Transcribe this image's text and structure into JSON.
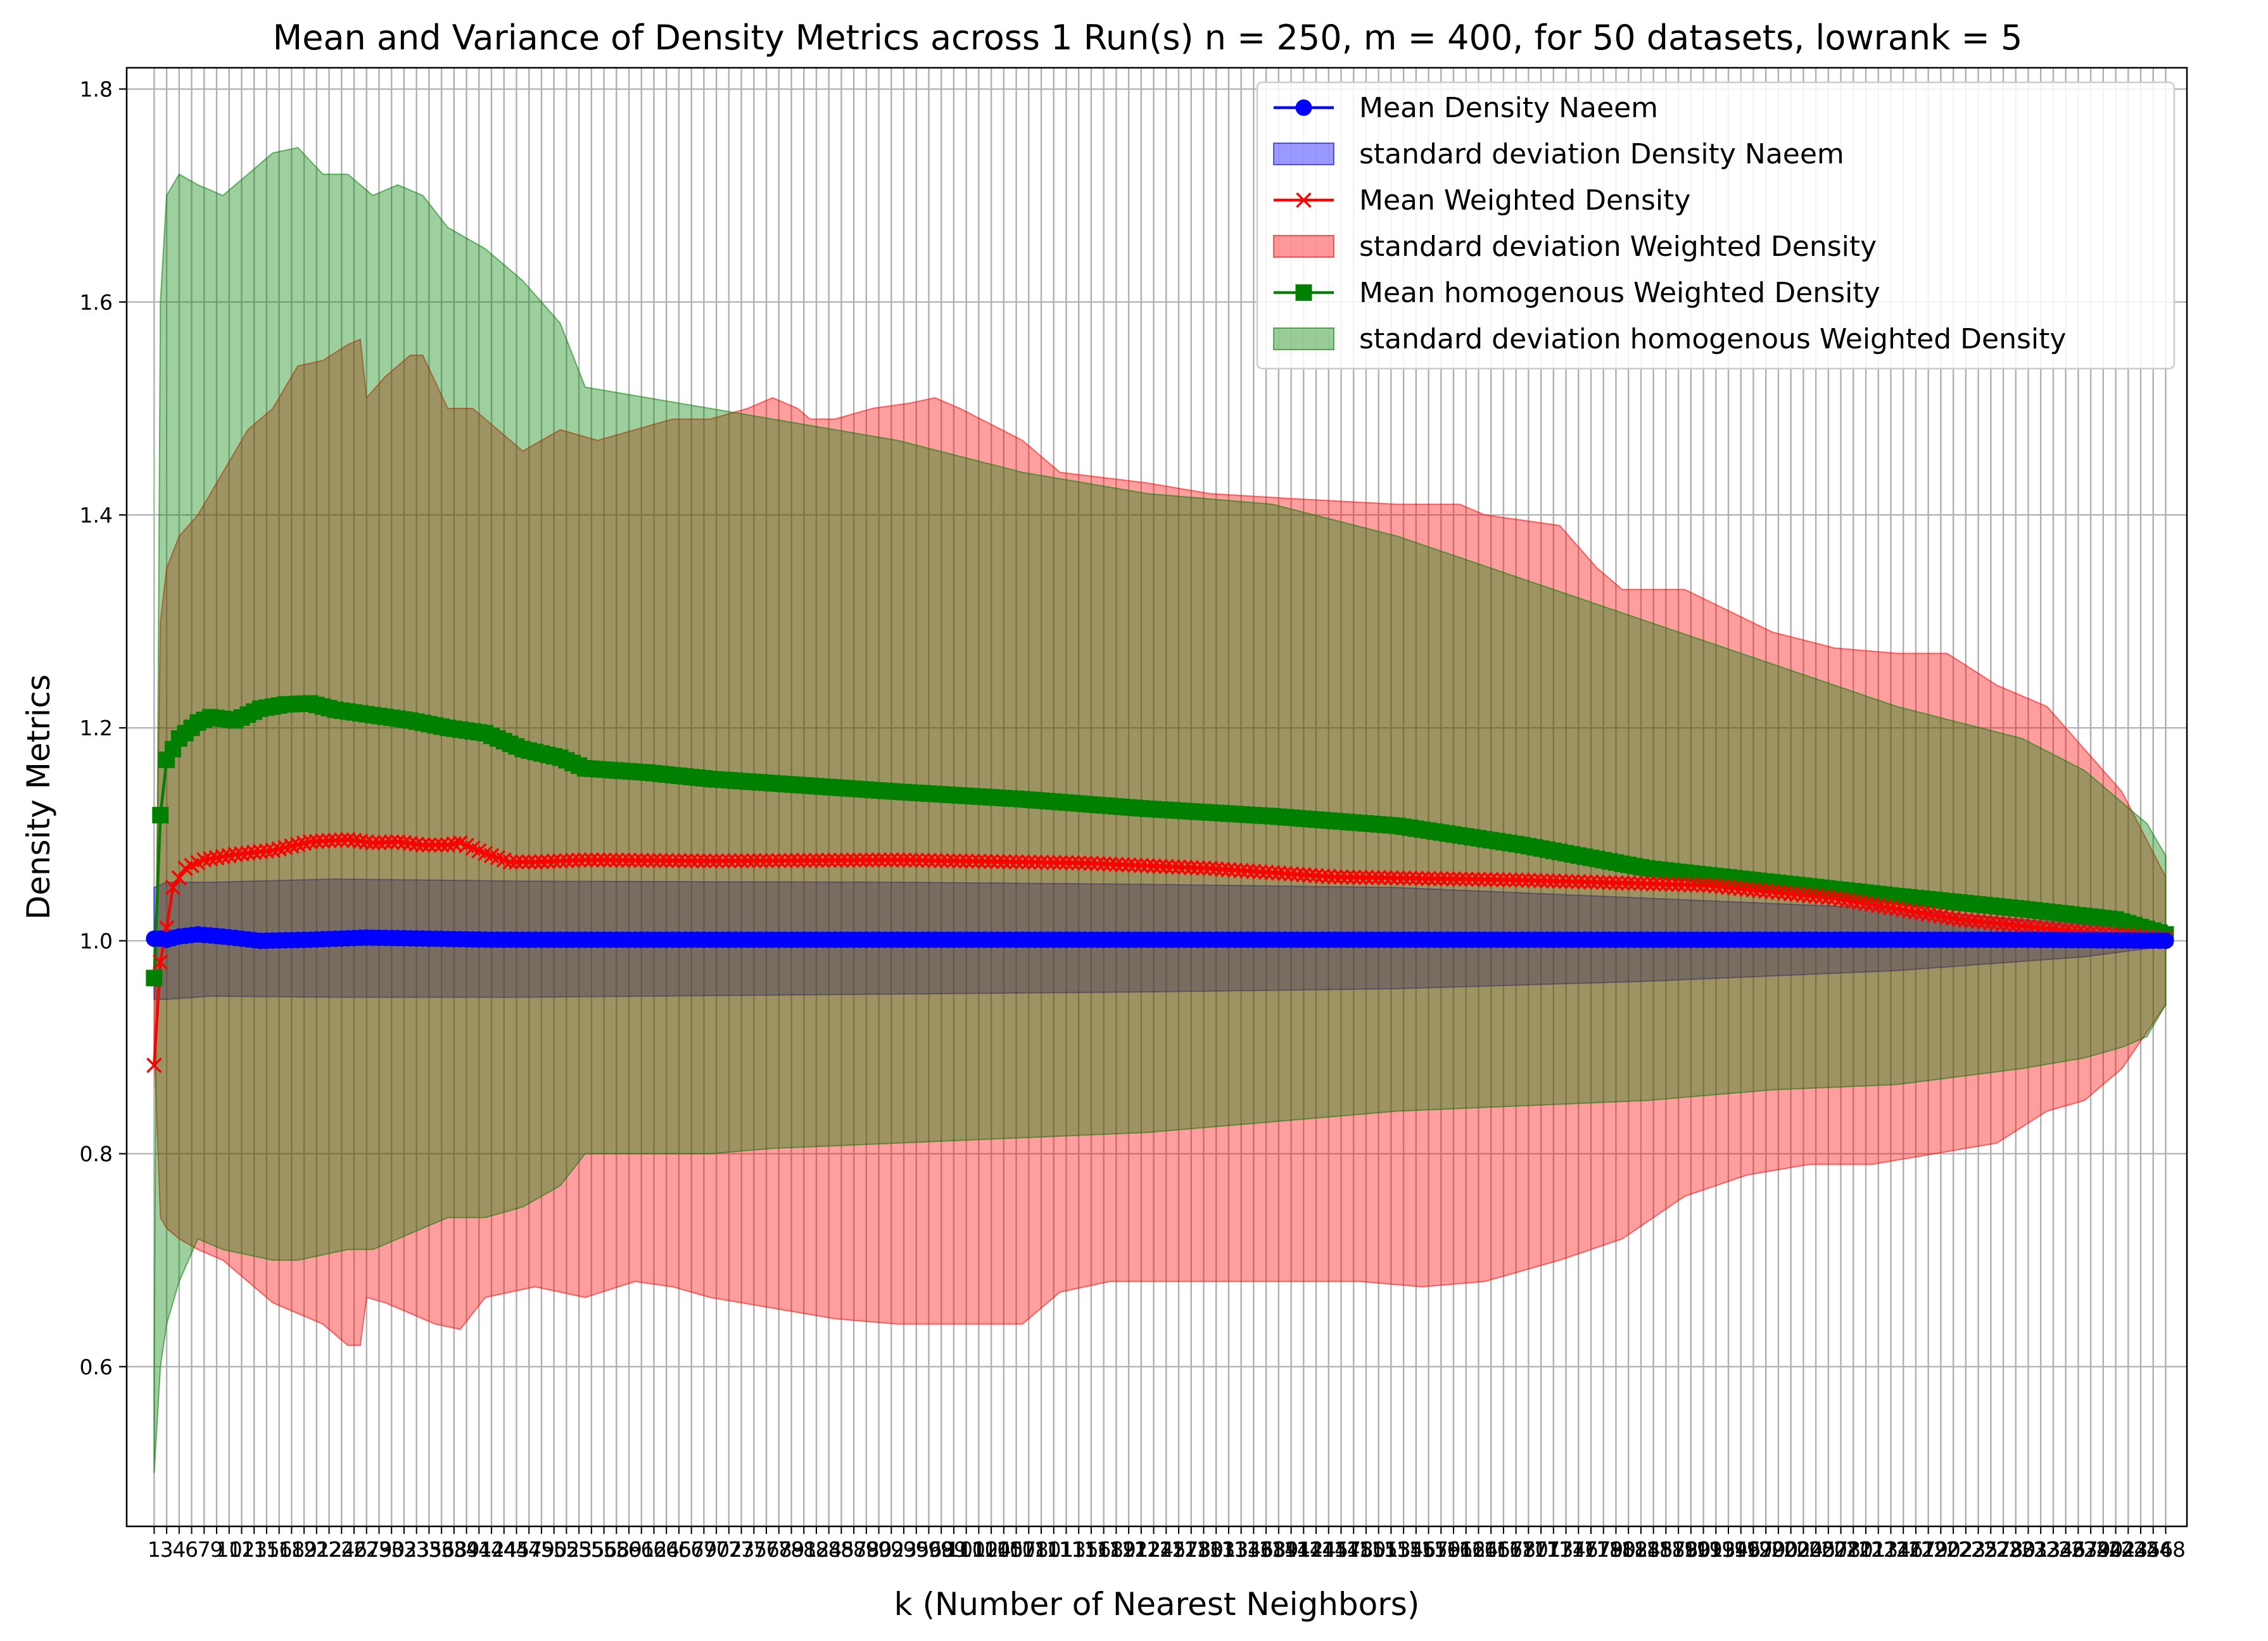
{
  "chart_data": {
    "type": "line",
    "title": "Mean and Variance of Density Metrics across 1 Run(s) n  = 250, m  = 400, for 50 datasets, lowrank = 5",
    "xlabel": "k (Number of Nearest Neighbors)",
    "ylabel": "Density Metrics",
    "xlim": [
      -3.4,
      326.4
    ],
    "ylim": [
      0.45,
      1.82
    ],
    "yticks": [
      "0.6",
      "0.8",
      "1.0",
      "1.2",
      "1.4",
      "1.6",
      "1.8"
    ],
    "xtick_step": 2,
    "xtick_label_start": "1",
    "xtick_label_end": "248",
    "grid": true,
    "legend_position": "upper right",
    "colors": {
      "naeem": "#0000ff",
      "weighted": "#ff0000",
      "homogenous": "#008000",
      "naeem_band": "#0000ff",
      "weighted_band": "#ff0000",
      "homogenous_band": "#008000",
      "grid": "#b0b0b0"
    },
    "legend": [
      {
        "label": "Mean Density Naeem",
        "kind": "line",
        "color": "#0000ff",
        "marker": "circle"
      },
      {
        "label": "standard deviation Density Naeem",
        "kind": "band",
        "color": "#0000ff"
      },
      {
        "label": "Mean Weighted Density",
        "kind": "line",
        "color": "#ff0000",
        "marker": "x"
      },
      {
        "label": "standard deviation Weighted Density",
        "kind": "band",
        "color": "#ff0000"
      },
      {
        "label": "Mean homogenous Weighted Density",
        "kind": "line",
        "color": "#008000",
        "marker": "square"
      },
      {
        "label": "standard deviation homogenous Weighted Density",
        "kind": "band",
        "color": "#008000"
      }
    ],
    "series_knots": {
      "naeem_mean": [
        [
          1,
          1.002
        ],
        [
          2,
          1.002
        ],
        [
          3,
          1.001
        ],
        [
          5,
          1.004
        ],
        [
          8,
          1.006
        ],
        [
          12,
          1.004
        ],
        [
          18,
          1.0
        ],
        [
          26,
          1.001
        ],
        [
          35,
          1.003
        ],
        [
          55,
          1.001
        ],
        [
          80,
          1.001
        ],
        [
          120,
          1.001
        ],
        [
          200,
          1.001
        ],
        [
          260,
          1.001
        ],
        [
          300,
          1.001
        ],
        [
          323,
          1.0
        ]
      ],
      "naeem_upper": [
        [
          1,
          1.05
        ],
        [
          3,
          1.055
        ],
        [
          10,
          1.055
        ],
        [
          30,
          1.058
        ],
        [
          60,
          1.056
        ],
        [
          120,
          1.055
        ],
        [
          160,
          1.053
        ],
        [
          200,
          1.05
        ],
        [
          240,
          1.04
        ],
        [
          280,
          1.03
        ],
        [
          310,
          1.015
        ],
        [
          323,
          1.005
        ]
      ],
      "naeem_lower": [
        [
          1,
          0.945
        ],
        [
          3,
          0.945
        ],
        [
          10,
          0.948
        ],
        [
          30,
          0.947
        ],
        [
          60,
          0.947
        ],
        [
          120,
          0.95
        ],
        [
          160,
          0.952
        ],
        [
          200,
          0.955
        ],
        [
          240,
          0.962
        ],
        [
          280,
          0.972
        ],
        [
          310,
          0.985
        ],
        [
          323,
          0.995
        ]
      ],
      "weighted_mean": [
        [
          1,
          0.883
        ],
        [
          2,
          0.98
        ],
        [
          3,
          1.012
        ],
        [
          4,
          1.05
        ],
        [
          6,
          1.068
        ],
        [
          9,
          1.076
        ],
        [
          14,
          1.081
        ],
        [
          20,
          1.085
        ],
        [
          26,
          1.093
        ],
        [
          32,
          1.095
        ],
        [
          36,
          1.092
        ],
        [
          40,
          1.093
        ],
        [
          44,
          1.09
        ],
        [
          48,
          1.09
        ],
        [
          50,
          1.092
        ],
        [
          54,
          1.082
        ],
        [
          58,
          1.074
        ],
        [
          62,
          1.074
        ],
        [
          70,
          1.076
        ],
        [
          90,
          1.075
        ],
        [
          120,
          1.076
        ],
        [
          150,
          1.073
        ],
        [
          170,
          1.068
        ],
        [
          190,
          1.06
        ],
        [
          220,
          1.057
        ],
        [
          250,
          1.052
        ],
        [
          270,
          1.04
        ],
        [
          290,
          1.02
        ],
        [
          310,
          1.008
        ],
        [
          323,
          1.002
        ]
      ],
      "weighted_upper": [
        [
          1,
          0.9
        ],
        [
          2,
          1.3
        ],
        [
          3,
          1.35
        ],
        [
          5,
          1.38
        ],
        [
          8,
          1.4
        ],
        [
          12,
          1.44
        ],
        [
          16,
          1.48
        ],
        [
          20,
          1.5
        ],
        [
          24,
          1.54
        ],
        [
          28,
          1.545
        ],
        [
          32,
          1.56
        ],
        [
          34,
          1.565
        ],
        [
          35,
          1.51
        ],
        [
          38,
          1.53
        ],
        [
          42,
          1.55
        ],
        [
          44,
          1.55
        ],
        [
          48,
          1.5
        ],
        [
          52,
          1.5
        ],
        [
          56,
          1.48
        ],
        [
          60,
          1.46
        ],
        [
          66,
          1.48
        ],
        [
          72,
          1.47
        ],
        [
          78,
          1.48
        ],
        [
          84,
          1.49
        ],
        [
          90,
          1.49
        ],
        [
          96,
          1.5
        ],
        [
          100,
          1.51
        ],
        [
          104,
          1.5
        ],
        [
          106,
          1.49
        ],
        [
          110,
          1.49
        ],
        [
          116,
          1.5
        ],
        [
          122,
          1.505
        ],
        [
          126,
          1.51
        ],
        [
          130,
          1.5
        ],
        [
          140,
          1.47
        ],
        [
          146,
          1.44
        ],
        [
          160,
          1.43
        ],
        [
          170,
          1.42
        ],
        [
          184,
          1.415
        ],
        [
          200,
          1.41
        ],
        [
          210,
          1.41
        ],
        [
          214,
          1.4
        ],
        [
          226,
          1.39
        ],
        [
          232,
          1.35
        ],
        [
          236,
          1.33
        ],
        [
          246,
          1.33
        ],
        [
          260,
          1.29
        ],
        [
          270,
          1.275
        ],
        [
          280,
          1.27
        ],
        [
          288,
          1.27
        ],
        [
          296,
          1.24
        ],
        [
          304,
          1.22
        ],
        [
          310,
          1.18
        ],
        [
          316,
          1.14
        ],
        [
          323,
          1.06
        ]
      ],
      "weighted_lower": [
        [
          1,
          0.9
        ],
        [
          2,
          0.74
        ],
        [
          3,
          0.73
        ],
        [
          5,
          0.72
        ],
        [
          8,
          0.71
        ],
        [
          12,
          0.7
        ],
        [
          16,
          0.68
        ],
        [
          20,
          0.66
        ],
        [
          24,
          0.65
        ],
        [
          28,
          0.64
        ],
        [
          32,
          0.62
        ],
        [
          34,
          0.62
        ],
        [
          35,
          0.665
        ],
        [
          38,
          0.66
        ],
        [
          42,
          0.65
        ],
        [
          46,
          0.64
        ],
        [
          50,
          0.635
        ],
        [
          54,
          0.665
        ],
        [
          58,
          0.67
        ],
        [
          62,
          0.675
        ],
        [
          66,
          0.67
        ],
        [
          70,
          0.665
        ],
        [
          78,
          0.68
        ],
        [
          84,
          0.675
        ],
        [
          90,
          0.665
        ],
        [
          100,
          0.655
        ],
        [
          110,
          0.645
        ],
        [
          120,
          0.64
        ],
        [
          130,
          0.64
        ],
        [
          140,
          0.64
        ],
        [
          146,
          0.67
        ],
        [
          154,
          0.68
        ],
        [
          164,
          0.68
        ],
        [
          174,
          0.68
        ],
        [
          184,
          0.68
        ],
        [
          194,
          0.68
        ],
        [
          204,
          0.675
        ],
        [
          214,
          0.68
        ],
        [
          226,
          0.7
        ],
        [
          236,
          0.72
        ],
        [
          246,
          0.76
        ],
        [
          256,
          0.78
        ],
        [
          266,
          0.79
        ],
        [
          276,
          0.79
        ],
        [
          286,
          0.8
        ],
        [
          296,
          0.81
        ],
        [
          304,
          0.84
        ],
        [
          310,
          0.85
        ],
        [
          316,
          0.88
        ],
        [
          323,
          0.94
        ]
      ],
      "homogenous_mean": [
        [
          1,
          0.965
        ],
        [
          2,
          1.118
        ],
        [
          3,
          1.17
        ],
        [
          5,
          1.19
        ],
        [
          8,
          1.205
        ],
        [
          10,
          1.21
        ],
        [
          14,
          1.207
        ],
        [
          18,
          1.218
        ],
        [
          22,
          1.222
        ],
        [
          26,
          1.223
        ],
        [
          30,
          1.217
        ],
        [
          36,
          1.212
        ],
        [
          42,
          1.207
        ],
        [
          48,
          1.2
        ],
        [
          54,
          1.195
        ],
        [
          60,
          1.18
        ],
        [
          66,
          1.172
        ],
        [
          70,
          1.162
        ],
        [
          80,
          1.158
        ],
        [
          90,
          1.152
        ],
        [
          100,
          1.148
        ],
        [
          120,
          1.14
        ],
        [
          140,
          1.133
        ],
        [
          160,
          1.124
        ],
        [
          180,
          1.117
        ],
        [
          200,
          1.108
        ],
        [
          220,
          1.09
        ],
        [
          240,
          1.068
        ],
        [
          260,
          1.055
        ],
        [
          280,
          1.042
        ],
        [
          300,
          1.03
        ],
        [
          315,
          1.02
        ],
        [
          323,
          1.006
        ]
      ],
      "homogenous_upper": [
        [
          1,
          0.6
        ],
        [
          2,
          1.6
        ],
        [
          3,
          1.7
        ],
        [
          5,
          1.72
        ],
        [
          8,
          1.71
        ],
        [
          12,
          1.7
        ],
        [
          16,
          1.72
        ],
        [
          20,
          1.74
        ],
        [
          24,
          1.745
        ],
        [
          28,
          1.72
        ],
        [
          32,
          1.72
        ],
        [
          36,
          1.7
        ],
        [
          40,
          1.71
        ],
        [
          44,
          1.7
        ],
        [
          48,
          1.67
        ],
        [
          54,
          1.65
        ],
        [
          60,
          1.62
        ],
        [
          66,
          1.58
        ],
        [
          70,
          1.52
        ],
        [
          80,
          1.51
        ],
        [
          90,
          1.5
        ],
        [
          100,
          1.49
        ],
        [
          120,
          1.47
        ],
        [
          140,
          1.44
        ],
        [
          160,
          1.42
        ],
        [
          180,
          1.41
        ],
        [
          200,
          1.38
        ],
        [
          220,
          1.34
        ],
        [
          240,
          1.3
        ],
        [
          260,
          1.26
        ],
        [
          280,
          1.22
        ],
        [
          300,
          1.19
        ],
        [
          310,
          1.16
        ],
        [
          316,
          1.13
        ],
        [
          320,
          1.11
        ],
        [
          323,
          1.08
        ]
      ],
      "homogenous_lower": [
        [
          1,
          0.5
        ],
        [
          2,
          0.6
        ],
        [
          3,
          0.64
        ],
        [
          5,
          0.68
        ],
        [
          8,
          0.72
        ],
        [
          12,
          0.71
        ],
        [
          16,
          0.705
        ],
        [
          20,
          0.7
        ],
        [
          24,
          0.7
        ],
        [
          28,
          0.705
        ],
        [
          32,
          0.71
        ],
        [
          36,
          0.71
        ],
        [
          40,
          0.72
        ],
        [
          44,
          0.73
        ],
        [
          48,
          0.74
        ],
        [
          54,
          0.74
        ],
        [
          60,
          0.75
        ],
        [
          66,
          0.77
        ],
        [
          70,
          0.8
        ],
        [
          80,
          0.8
        ],
        [
          90,
          0.8
        ],
        [
          100,
          0.805
        ],
        [
          120,
          0.81
        ],
        [
          140,
          0.815
        ],
        [
          160,
          0.82
        ],
        [
          180,
          0.83
        ],
        [
          200,
          0.84
        ],
        [
          220,
          0.845
        ],
        [
          240,
          0.85
        ],
        [
          260,
          0.86
        ],
        [
          280,
          0.865
        ],
        [
          300,
          0.88
        ],
        [
          310,
          0.89
        ],
        [
          316,
          0.9
        ],
        [
          320,
          0.91
        ],
        [
          323,
          0.94
        ]
      ]
    }
  }
}
